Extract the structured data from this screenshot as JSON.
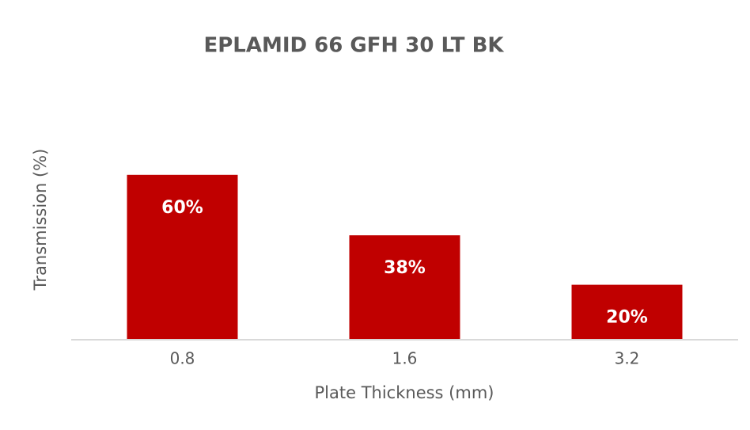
{
  "chart_data": {
    "type": "bar",
    "title": "EPLAMID 66 GFH 30 LT BK",
    "x_label": "Plate Thickness (mm)",
    "y_label": "Transmission (%)",
    "categories": [
      "0.8",
      "1.6",
      "3.2"
    ],
    "values": [
      60,
      38,
      20
    ],
    "value_labels": [
      "60%",
      "38%",
      "20%"
    ],
    "color": "#c00000",
    "ylim": [
      0,
      100
    ]
  }
}
